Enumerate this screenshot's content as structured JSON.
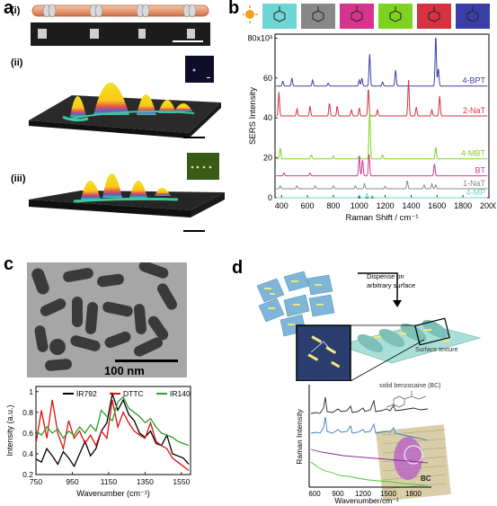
{
  "panels": {
    "a": {
      "label": "a",
      "subpanels": [
        "(i)",
        "(ii)",
        "(iii)"
      ]
    },
    "b": {
      "label": "b",
      "series_colors": [
        "#3a3fa8",
        "#d6323f",
        "#7ed321",
        "#d6358e",
        "#888888",
        "#6fd6d6"
      ]
    },
    "c": {
      "label": "c",
      "tem_scale_label": "100 nm"
    },
    "d": {
      "label": "d",
      "dispense_label": "Dispense on arbitrary surface",
      "surface_label": "Surface texture",
      "compound_label": "solid benzocaine (BC)",
      "bc_label": "BC",
      "ylabel": "Raman Intensity",
      "xlabel": "Wavenumber/cm⁻¹",
      "xticks": [
        "600",
        "900",
        "1200",
        "1500",
        "1800"
      ]
    }
  },
  "chart_data": [
    {
      "id": "b",
      "type": "line",
      "xlabel": "Raman Shift / cm⁻¹",
      "ylabel": "SERS Intensity",
      "xlim": [
        350,
        2000
      ],
      "ylim": [
        0,
        82000
      ],
      "xticks": [
        "400",
        "600",
        "800",
        "1000",
        "1200",
        "1400",
        "1600",
        "1800",
        "2000"
      ],
      "yticks": [
        "0",
        "20",
        "40",
        "60",
        "80x10³"
      ],
      "series": [
        {
          "name": "4-BPT",
          "color": "#3a3fa8",
          "baseline": 56000,
          "peaks": [
            [
              410,
              2500
            ],
            [
              480,
              4000
            ],
            [
              640,
              3000
            ],
            [
              760,
              1500
            ],
            [
              1000,
              3000
            ],
            [
              1020,
              4000
            ],
            [
              1080,
              16000
            ],
            [
              1180,
              2000
            ],
            [
              1280,
              8000
            ],
            [
              1590,
              26000
            ],
            [
              1610,
              9000
            ]
          ]
        },
        {
          "name": "2-NaT",
          "color": "#d6323f",
          "baseline": 41000,
          "peaks": [
            [
              380,
              12000
            ],
            [
              520,
              3500
            ],
            [
              620,
              5000
            ],
            [
              770,
              6500
            ],
            [
              830,
              5000
            ],
            [
              940,
              3000
            ],
            [
              1000,
              4000
            ],
            [
              1070,
              14000
            ],
            [
              1140,
              3000
            ],
            [
              1380,
              18000
            ],
            [
              1440,
              4500
            ],
            [
              1560,
              3000
            ],
            [
              1620,
              10000
            ]
          ]
        },
        {
          "name": "4-MBT",
          "color": "#7ed321",
          "baseline": 19500,
          "peaks": [
            [
              390,
              5500
            ],
            [
              630,
              2000
            ],
            [
              800,
              1500
            ],
            [
              1000,
              1500
            ],
            [
              1080,
              24000
            ],
            [
              1180,
              2000
            ],
            [
              1590,
              6000
            ]
          ]
        },
        {
          "name": "BT",
          "color": "#d6358e",
          "baseline": 11000,
          "peaks": [
            [
              420,
              1500
            ],
            [
              620,
              1500
            ],
            [
              1000,
              10000
            ],
            [
              1025,
              8000
            ],
            [
              1075,
              11000
            ],
            [
              1580,
              6000
            ]
          ]
        },
        {
          "name": "1-NaT",
          "color": "#888888",
          "baseline": 4500,
          "peaks": [
            [
              390,
              1500
            ],
            [
              520,
              1500
            ],
            [
              660,
              1500
            ],
            [
              800,
              1500
            ],
            [
              970,
              1500
            ],
            [
              1040,
              2500
            ],
            [
              1200,
              1200
            ],
            [
              1370,
              4000
            ],
            [
              1500,
              2000
            ],
            [
              1560,
              2500
            ],
            [
              1590,
              2000
            ]
          ]
        },
        {
          "name": "4-MP",
          "color": "#6fd6d6",
          "baseline": 0,
          "peaks": [
            [
              1000,
              1500
            ],
            [
              1060,
              2000
            ],
            [
              1100,
              1200
            ]
          ]
        }
      ]
    },
    {
      "id": "c",
      "type": "line",
      "xlabel": "Wavenumber (cm⁻¹)",
      "ylabel": "Intensity (a.u.)",
      "xlim": [
        750,
        1600
      ],
      "ylim": [
        0.2,
        1.05
      ],
      "xticks": [
        "750",
        "950",
        "1150",
        "1350",
        "1550"
      ],
      "yticks": [
        "0.2",
        "0.4",
        "0.6",
        "0.8",
        "1"
      ],
      "series": [
        {
          "name": "IR792",
          "color": "#000000",
          "x": [
            750,
            780,
            810,
            840,
            870,
            900,
            930,
            960,
            990,
            1020,
            1050,
            1080,
            1110,
            1140,
            1170,
            1200,
            1230,
            1260,
            1290,
            1320,
            1350,
            1380,
            1410,
            1440,
            1470,
            1500,
            1530,
            1560,
            1590
          ],
          "y": [
            0.35,
            0.32,
            0.45,
            0.38,
            0.3,
            0.42,
            0.36,
            0.28,
            0.4,
            0.52,
            0.38,
            0.45,
            0.62,
            0.7,
            0.98,
            0.82,
            0.92,
            0.78,
            0.72,
            0.6,
            0.56,
            0.62,
            0.5,
            0.48,
            0.58,
            0.4,
            0.38,
            0.36,
            0.3
          ]
        },
        {
          "name": "DTTC",
          "color": "#e01010",
          "x": [
            750,
            780,
            810,
            840,
            870,
            900,
            930,
            960,
            990,
            1020,
            1050,
            1080,
            1110,
            1140,
            1170,
            1200,
            1230,
            1260,
            1290,
            1320,
            1350,
            1380,
            1410,
            1440,
            1470,
            1500,
            1530,
            1560,
            1590
          ],
          "y": [
            0.5,
            0.82,
            0.55,
            0.92,
            0.6,
            0.45,
            0.72,
            0.55,
            0.62,
            0.5,
            0.58,
            0.48,
            0.62,
            0.55,
            0.92,
            0.66,
            0.8,
            0.7,
            0.62,
            0.58,
            0.55,
            0.7,
            0.52,
            0.48,
            0.45,
            0.36,
            0.32,
            0.28,
            0.24
          ]
        },
        {
          "name": "IR140",
          "color": "#2aa02a",
          "x": [
            750,
            780,
            810,
            840,
            870,
            900,
            930,
            960,
            990,
            1020,
            1050,
            1080,
            1110,
            1140,
            1170,
            1200,
            1230,
            1260,
            1290,
            1320,
            1350,
            1380,
            1410,
            1440,
            1470,
            1500,
            1530,
            1560,
            1590
          ],
          "y": [
            0.62,
            0.58,
            0.66,
            0.6,
            0.64,
            0.55,
            0.62,
            0.58,
            0.66,
            0.6,
            0.68,
            0.62,
            0.82,
            0.76,
            0.72,
            0.9,
            0.95,
            0.84,
            0.8,
            0.76,
            0.7,
            0.74,
            0.66,
            0.6,
            0.58,
            0.56,
            0.52,
            0.5,
            0.48
          ]
        }
      ]
    }
  ]
}
